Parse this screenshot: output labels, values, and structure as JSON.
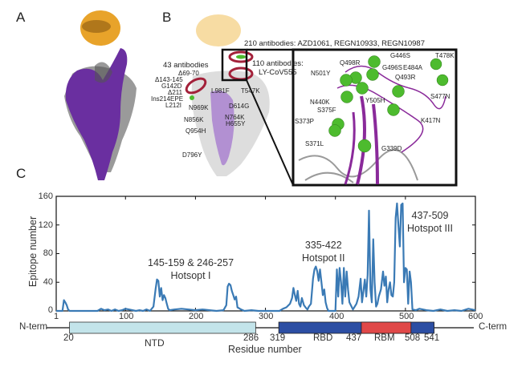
{
  "panels": {
    "a": {
      "letter": "A"
    },
    "b": {
      "letter": "B",
      "rbd_label": "210 antibodies: AZD1061, REGN10933, REGN10987",
      "ly_label_line1": "110 antibodies:",
      "ly_label_line2": "LY-CoV555",
      "ntd_label": "43 antibodies",
      "mutations_left": [
        "Δ69-70",
        "Δ143-145",
        "G142D",
        "Δ211",
        "Ins214EPE",
        "L212I"
      ],
      "mutations_body": [
        "L981F",
        "T547K",
        "N969K",
        "D614G",
        "N856K",
        "N764K",
        "H655Y",
        "Q954H",
        "D796Y"
      ],
      "mutations_inset": [
        "G446S",
        "T478K",
        "Q498R",
        "G496S",
        "E484A",
        "N501Y",
        "Q493R",
        "S477N",
        "Y505H",
        "N440K",
        "S375F",
        "K417N",
        "S373P",
        "S371L",
        "G339D"
      ]
    },
    "c": {
      "letter": "C"
    }
  },
  "colors": {
    "line": "#3a7ab5",
    "ntd": "#c3e4ea",
    "rbd": "#2c4ea3",
    "rbm": "#e04848",
    "ace2": "#e8a32a",
    "spike_purple": "#6a2fa0",
    "inset_purple": "#8a2a9a",
    "green_ball": "#4dbb2e",
    "ring": "#a3213a"
  },
  "chart_data": {
    "type": "line",
    "title": "",
    "xlabel": "Residue number",
    "ylabel": "Epitope number",
    "xlim": [
      1,
      600
    ],
    "ylim": [
      0,
      160
    ],
    "x_ticks": [
      1,
      100,
      200,
      300,
      400,
      500,
      600
    ],
    "y_ticks": [
      0,
      40,
      80,
      120,
      160
    ],
    "grid": false,
    "annotations": [
      {
        "line1": "145-159 & 246-257",
        "line2": "Hotsopt I",
        "x": 200,
        "y": 58
      },
      {
        "line1": "335-422",
        "line2": "Hotspot II",
        "x": 378,
        "y": 78
      },
      {
        "line1": "437-509",
        "line2": "Hotspot III",
        "x": 552,
        "y": 125
      }
    ],
    "series": [
      {
        "name": "Epitope number",
        "x": [
          1,
          10,
          12,
          14,
          16,
          18,
          20,
          25,
          30,
          60,
          65,
          70,
          75,
          80,
          85,
          90,
          95,
          100,
          105,
          110,
          115,
          120,
          125,
          130,
          135,
          140,
          143,
          145,
          147,
          149,
          151,
          153,
          155,
          157,
          159,
          161,
          163,
          170,
          180,
          190,
          200,
          210,
          220,
          230,
          240,
          244,
          246,
          248,
          250,
          252,
          254,
          256,
          258,
          260,
          265,
          270,
          280,
          290,
          300,
          310,
          320,
          325,
          330,
          335,
          338,
          340,
          342,
          344,
          346,
          348,
          350,
          352,
          355,
          358,
          360,
          362,
          365,
          368,
          370,
          372,
          374,
          376,
          378,
          380,
          382,
          384,
          386,
          388,
          390,
          395,
          400,
          402,
          404,
          406,
          408,
          410,
          412,
          414,
          416,
          418,
          420,
          422,
          425,
          430,
          433,
          436,
          438,
          440,
          442,
          444,
          446,
          448,
          450,
          452,
          454,
          456,
          458,
          460,
          462,
          465,
          468,
          470,
          472,
          474,
          476,
          478,
          480,
          482,
          484,
          486,
          488,
          490,
          492,
          494,
          496,
          498,
          500,
          502,
          504,
          506,
          508,
          510,
          515,
          520,
          530,
          540,
          550,
          560,
          570,
          580,
          590,
          600
        ],
        "values": [
          0,
          0,
          15,
          12,
          8,
          2,
          0,
          0,
          0,
          0,
          3,
          1,
          2,
          0,
          2,
          0,
          1,
          3,
          2,
          1,
          0,
          1,
          0,
          2,
          0,
          6,
          30,
          44,
          42,
          20,
          32,
          15,
          22,
          18,
          10,
          3,
          1,
          2,
          3,
          2,
          1,
          2,
          1,
          0,
          1,
          8,
          34,
          38,
          36,
          28,
          22,
          16,
          20,
          5,
          2,
          0,
          1,
          0,
          0,
          0,
          0,
          3,
          5,
          10,
          18,
          32,
          22,
          14,
          28,
          10,
          6,
          18,
          8,
          4,
          2,
          6,
          10,
          45,
          58,
          62,
          55,
          42,
          58,
          40,
          22,
          30,
          12,
          4,
          0,
          0,
          0,
          58,
          20,
          60,
          40,
          10,
          60,
          20,
          55,
          30,
          12,
          8,
          2,
          10,
          20,
          45,
          12,
          28,
          44,
          20,
          50,
          140,
          30,
          12,
          100,
          40,
          6,
          10,
          20,
          30,
          55,
          35,
          48,
          12,
          30,
          40,
          22,
          20,
          40,
          130,
          150,
          120,
          90,
          148,
          150,
          40,
          60,
          58,
          10,
          55,
          40,
          2,
          1,
          3,
          1,
          0,
          2,
          0,
          1,
          0,
          3,
          1
        ]
      }
    ],
    "domain_map": {
      "n_label": "N-term",
      "c_label": "C-term",
      "domains": [
        {
          "name": "NTD",
          "start": 20,
          "end": 286
        },
        {
          "name": "RBD",
          "start": 319,
          "end": 541
        },
        {
          "name": "RBM",
          "start": 437,
          "end": 508
        }
      ],
      "boundary_labels": [
        "20",
        "286",
        "319",
        "437",
        "508",
        "541"
      ]
    }
  }
}
